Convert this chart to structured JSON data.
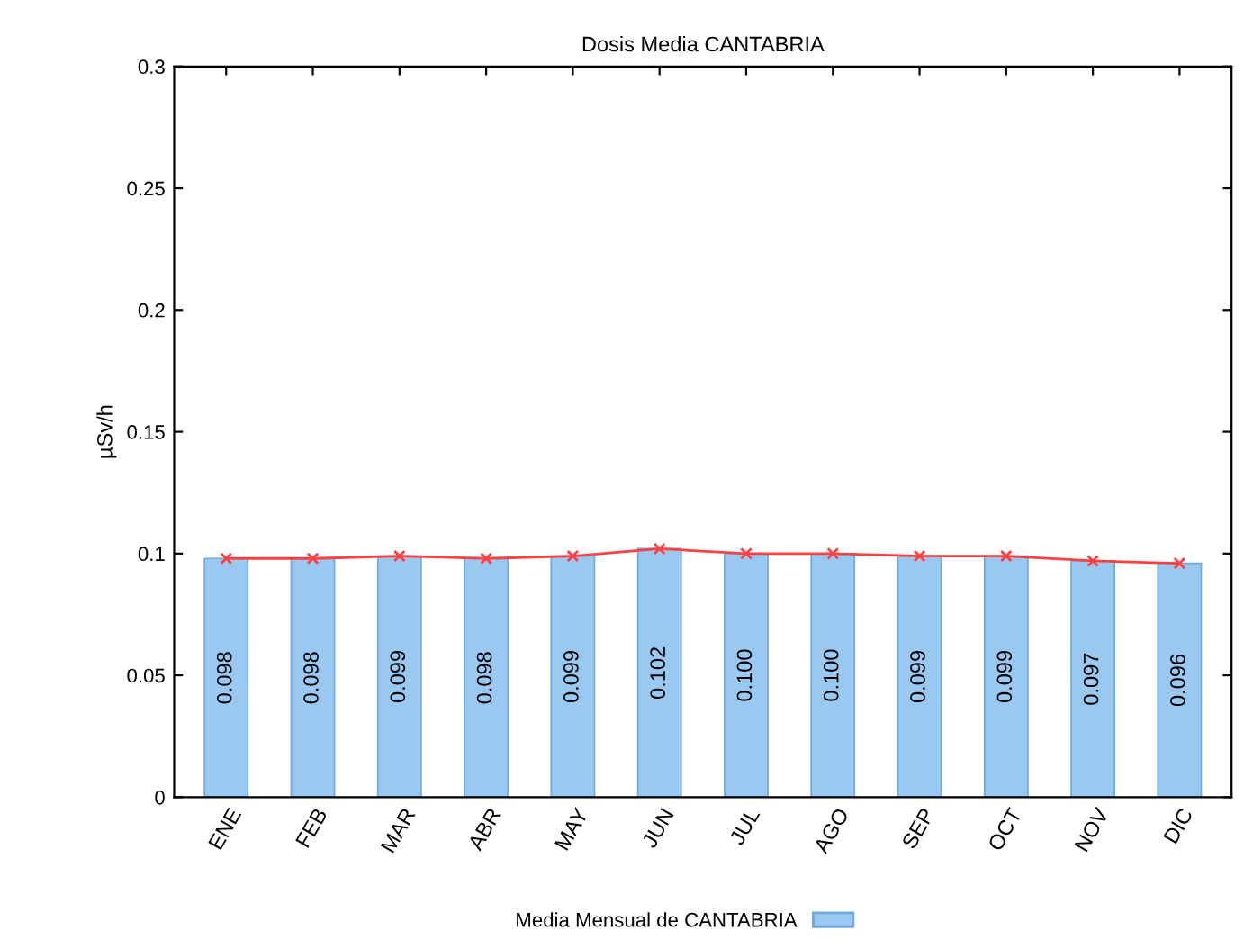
{
  "chart_data": {
    "type": "bar",
    "title": "Dosis Media CANTABRIA",
    "ylabel": "µSv/h",
    "categories": [
      "ENE",
      "FEB",
      "MAR",
      "ABR",
      "MAY",
      "JUN",
      "JUL",
      "AGO",
      "SEP",
      "OCT",
      "NOV",
      "DIC"
    ],
    "series": [
      {
        "name": "Media Mensual de CANTABRIA",
        "color": "#99c8f0",
        "values": [
          0.098,
          0.098,
          0.099,
          0.098,
          0.099,
          0.102,
          0.1,
          0.1,
          0.099,
          0.099,
          0.097,
          0.096
        ],
        "value_labels": [
          "0.098",
          "0.098",
          "0.099",
          "0.098",
          "0.099",
          "0.102",
          "0.100",
          "0.100",
          "0.099",
          "0.099",
          "0.097",
          "0.096"
        ]
      },
      {
        "type": "line",
        "color": "#ff4040",
        "marker": "cross",
        "values": [
          0.098,
          0.098,
          0.099,
          0.098,
          0.099,
          0.102,
          0.1,
          0.1,
          0.099,
          0.099,
          0.097,
          0.096
        ]
      }
    ],
    "ylim": [
      0,
      0.3
    ],
    "yticks": [
      0,
      0.05,
      0.1,
      0.15,
      0.2,
      0.25,
      0.3
    ],
    "grid": false,
    "legend": "bottom"
  }
}
